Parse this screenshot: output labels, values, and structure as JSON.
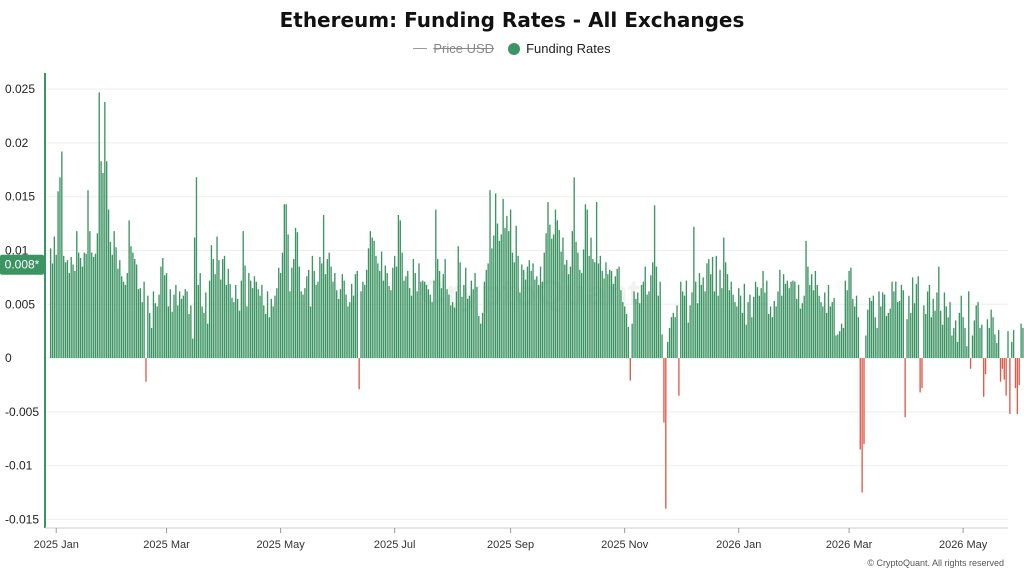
{
  "chart_data": {
    "type": "bar",
    "title": "Ethereum: Funding Rates - All Exchanges",
    "legend": [
      {
        "name": "Price USD",
        "color": "#999999",
        "visible": false,
        "symbol": "line"
      },
      {
        "name": "Funding Rates",
        "color": "#3d9463",
        "visible": true,
        "symbol": "dot"
      }
    ],
    "current_value_label": "0.008*",
    "y_ticks": [
      {
        "value": 0.025,
        "label": "0.025"
      },
      {
        "value": 0.02,
        "label": "0.02"
      },
      {
        "value": 0.015,
        "label": "0.015"
      },
      {
        "value": 0.01,
        "label": "0.01"
      },
      {
        "value": 0.005,
        "label": "0.005"
      },
      {
        "value": 0,
        "label": "0"
      },
      {
        "value": -0.005,
        "label": "-0.005"
      },
      {
        "value": -0.01,
        "label": "-0.01"
      },
      {
        "value": -0.015,
        "label": "-0.015"
      }
    ],
    "ylim": [
      -0.0158,
      0.0265
    ],
    "x_range": [
      "2024-12-26",
      "2026-05-25"
    ],
    "x_ticks": [
      {
        "date": "2025-01-01",
        "label": "2025 Jan"
      },
      {
        "date": "2025-03-01",
        "label": "2025 Mar"
      },
      {
        "date": "2025-05-01",
        "label": "2025 May"
      },
      {
        "date": "2025-07-01",
        "label": "2025 Jul"
      },
      {
        "date": "2025-09-01",
        "label": "2025 Sep"
      },
      {
        "date": "2025-11-01",
        "label": "2025 Nov"
      },
      {
        "date": "2026-01-01",
        "label": "2026 Jan"
      },
      {
        "date": "2026-03-01",
        "label": "2026 Mar"
      },
      {
        "date": "2026-05-01",
        "label": "2026 May"
      }
    ],
    "grid": true,
    "colors": {
      "positive": "#3d9463",
      "negative": "#e05a4a",
      "grid": "#eeeeee"
    },
    "series": [
      {
        "name": "Funding Rates",
        "start_date": "2024-12-29",
        "x_step": "1 day",
        "values": [
          0.0102,
          0.0088,
          0.0113,
          0.0096,
          0.0155,
          0.0168,
          0.0192,
          0.0095,
          0.0089,
          0.0091,
          0.0079,
          0.0094,
          0.0087,
          0.0081,
          0.0118,
          0.0098,
          0.0093,
          0.0085,
          0.0098,
          0.0097,
          0.0156,
          0.0118,
          0.0098,
          0.0094,
          0.0097,
          0.0116,
          0.0247,
          0.0183,
          0.0172,
          0.0238,
          0.0183,
          0.0138,
          0.0108,
          0.0096,
          0.0118,
          0.0103,
          0.0083,
          0.0091,
          0.0076,
          0.0071,
          0.0068,
          0.0079,
          0.0128,
          0.0104,
          0.0098,
          0.0092,
          0.0087,
          0.0064,
          0.0065,
          0.0052,
          0.0071,
          -0.0022,
          0.0058,
          0.0042,
          0.0028,
          0.0062,
          0.0051,
          0.0048,
          0.0059,
          0.0085,
          0.0093,
          0.0077,
          0.0079,
          0.0048,
          0.0064,
          0.0043,
          0.0059,
          0.0068,
          0.0049,
          0.0062,
          0.0055,
          0.0058,
          0.0064,
          0.0062,
          0.0041,
          0.0049,
          0.0018,
          0.0112,
          0.0168,
          0.0068,
          0.0079,
          0.0048,
          0.0042,
          0.0061,
          0.0032,
          0.0072,
          0.0105,
          0.0092,
          0.0078,
          0.0113,
          0.0091,
          0.0073,
          0.0092,
          0.0095,
          0.0068,
          0.0083,
          0.0069,
          0.0056,
          0.0052,
          0.0068,
          0.0055,
          0.0044,
          0.0072,
          0.0118,
          0.0086,
          0.0048,
          0.0079,
          0.0072,
          0.0065,
          0.0076,
          0.0071,
          0.0064,
          0.0058,
          0.0068,
          0.0049,
          0.0041,
          0.0062,
          0.0038,
          0.0055,
          0.0048,
          0.0058,
          0.0065,
          0.0084,
          0.0079,
          0.0098,
          0.0143,
          0.0143,
          0.0115,
          0.0062,
          0.0084,
          0.0092,
          0.0121,
          0.0117,
          0.0085,
          0.0062,
          0.0059,
          0.0065,
          0.0076,
          0.0082,
          0.0048,
          0.0095,
          0.0081,
          0.0068,
          0.0071,
          0.0094,
          0.0088,
          0.0133,
          0.0078,
          0.0092,
          0.0098,
          0.0085,
          0.0071,
          0.0079,
          0.0063,
          0.0055,
          0.0064,
          0.0078,
          0.0072,
          0.0059,
          0.0048,
          0.0052,
          0.0069,
          0.0058,
          0.0078,
          0.0081,
          -0.0029,
          0.0062,
          0.0071,
          0.0068,
          0.0082,
          0.0102,
          0.0118,
          0.0112,
          0.0109,
          0.0095,
          0.0088,
          0.0081,
          0.0099,
          0.0072,
          0.0086,
          0.0079,
          0.0067,
          0.0063,
          0.0084,
          0.0095,
          0.0085,
          0.0133,
          0.0128,
          0.0098,
          0.0072,
          0.0076,
          0.0081,
          0.0065,
          0.0058,
          0.0092,
          0.0079,
          0.0062,
          0.0088,
          0.0071,
          0.0072,
          0.0071,
          0.0068,
          0.0064,
          0.0059,
          0.0052,
          0.0072,
          0.0138,
          0.0092,
          0.0081,
          0.0065,
          0.0078,
          0.0092,
          0.0064,
          0.0059,
          0.0049,
          0.0052,
          0.0047,
          0.0062,
          0.0104,
          0.0089,
          0.0057,
          0.0068,
          0.0084,
          0.0055,
          0.0058,
          0.0072,
          0.0064,
          0.0079,
          0.0066,
          0.0039,
          0.0032,
          0.0042,
          0.0071,
          0.0082,
          0.0088,
          0.0156,
          0.0102,
          0.0114,
          0.0153,
          0.0125,
          0.0109,
          0.0115,
          0.0148,
          0.0121,
          0.0132,
          0.0118,
          0.0138,
          0.0098,
          0.0089,
          0.0123,
          0.0095,
          0.0061,
          0.0087,
          0.0082,
          0.0073,
          0.0085,
          0.0091,
          0.0081,
          0.0088,
          0.0073,
          0.0076,
          0.0068,
          0.0085,
          0.0071,
          0.0098,
          0.0116,
          0.0145,
          0.0124,
          0.0111,
          0.0115,
          0.0138,
          0.0128,
          0.0119,
          0.0099,
          0.0112,
          0.0087,
          0.0091,
          0.0078,
          0.0085,
          0.0118,
          0.0168,
          0.0108,
          0.0098,
          0.0082,
          0.0079,
          0.0101,
          0.0143,
          0.0138,
          0.0095,
          0.0112,
          0.0092,
          0.0089,
          0.0145,
          0.0088,
          0.0095,
          0.0081,
          0.0074,
          0.0089,
          0.0078,
          0.0082,
          0.0081,
          0.0069,
          0.0076,
          0.0083,
          0.0085,
          0.0063,
          0.0052,
          0.0048,
          0.0041,
          0.0029,
          -0.0021,
          0.0032,
          0.0062,
          0.0055,
          0.0061,
          0.0051,
          0.0068,
          0.0071,
          0.0085,
          0.0059,
          0.0062,
          0.0077,
          0.0089,
          0.0142,
          0.0085,
          0.0058,
          0.0071,
          0.0022,
          -0.006,
          -0.014,
          0.0015,
          0.0028,
          0.0038,
          0.0042,
          0.0038,
          0.0049,
          -0.0035,
          0.0071,
          0.0062,
          0.0058,
          0.0072,
          0.0033,
          0.0049,
          0.0061,
          0.0122,
          0.0071,
          0.0051,
          0.0079,
          0.0068,
          0.0075,
          0.0062,
          0.0088,
          0.0092,
          0.0078,
          0.0094,
          0.0062,
          0.0095,
          0.0058,
          0.0082,
          0.0065,
          0.0112,
          0.0089,
          0.0078,
          0.0063,
          0.0071,
          0.0059,
          0.0052,
          0.0048,
          0.0065,
          0.0058,
          0.0042,
          0.0069,
          0.0031,
          0.0052,
          0.0059,
          0.0038,
          0.0057,
          0.0071,
          0.0066,
          0.0058,
          0.0065,
          0.0081,
          0.0061,
          0.0072,
          0.0041,
          0.0048,
          0.0038,
          0.0053,
          0.0048,
          0.0062,
          0.0082,
          0.0058,
          0.0078,
          0.0069,
          0.0072,
          0.0065,
          0.0071,
          0.0072,
          0.0071,
          0.0055,
          0.0068,
          0.0046,
          0.0051,
          0.0058,
          0.0109,
          0.0085,
          0.0068,
          0.0078,
          0.0063,
          0.0081,
          0.0068,
          0.0058,
          0.0052,
          0.0048,
          0.0061,
          0.0042,
          0.0068,
          0.0048,
          0.0052,
          0.0056,
          0.0021,
          0.0022,
          0.0025,
          0.0032,
          0.0028,
          0.0072,
          0.0063,
          0.0081,
          0.0084,
          0.0055,
          0.0048,
          0.0058,
          0.0038,
          -0.0085,
          -0.0125,
          -0.008,
          0.0021,
          0.0045,
          0.0056,
          0.0053,
          0.0058,
          0.0038,
          0.0028,
          0.0062,
          0.0048,
          0.0061,
          0.0059,
          0.0039,
          0.0042,
          0.0046,
          0.0071,
          0.0062,
          0.0071,
          0.0052,
          0.0053,
          0.0068,
          0.0063,
          -0.0055,
          0.0036,
          0.0058,
          0.0042,
          0.0075,
          0.0051,
          0.0069,
          0.0076,
          -0.0032,
          -0.0028,
          0.0049,
          0.0041,
          0.0062,
          0.0068,
          0.0038,
          0.0055,
          0.0044,
          0.0061,
          0.0085,
          0.0044,
          0.0031,
          0.0061,
          0.0048,
          0.0038,
          0.0052,
          0.0021,
          0.0028,
          0.0035,
          0.0015,
          0.0042,
          0.0058,
          0.0038,
          0.0028,
          0.0011,
          0.0062,
          -0.001,
          0.0021,
          0.0035,
          0.0049,
          0.0052,
          0.0028,
          0.0031,
          -0.0036,
          -0.0015,
          0.0036,
          0.0028,
          0.0045,
          0.0038,
          0.0022,
          0.0014,
          0.0026,
          -0.0022,
          -0.001,
          -0.002,
          -0.0035,
          0.0025,
          -0.0052,
          0.0015,
          0.0026,
          -0.0028,
          -0.0052,
          -0.0025,
          0.0032,
          0.0028,
          0.0021,
          -0.0015,
          -0.001,
          0.0038,
          0.0028,
          -0.0033,
          0.0032,
          0.0022,
          0.0015,
          0.0021,
          0.0011,
          0.0008,
          -0.0005,
          0.0014,
          -0.0003,
          0.0015,
          0.0045,
          0.0068,
          0.0032,
          0.0062,
          0.0035,
          0.0065,
          0.0058,
          0.0052,
          0.0042,
          0.0078,
          0.0041,
          0.0062,
          0.0028,
          0.0045,
          0.0072,
          0.0098,
          0.0088,
          0.0062,
          0.0062,
          0.0082,
          0.0072,
          0.0065,
          0.0088,
          0.0092,
          0.0085,
          0.0068,
          0.0104,
          0.0071,
          0.0086
        ]
      }
    ]
  },
  "watermark": "CryptoQuant",
  "footer": "© CryptoQuant. All rights reserved"
}
